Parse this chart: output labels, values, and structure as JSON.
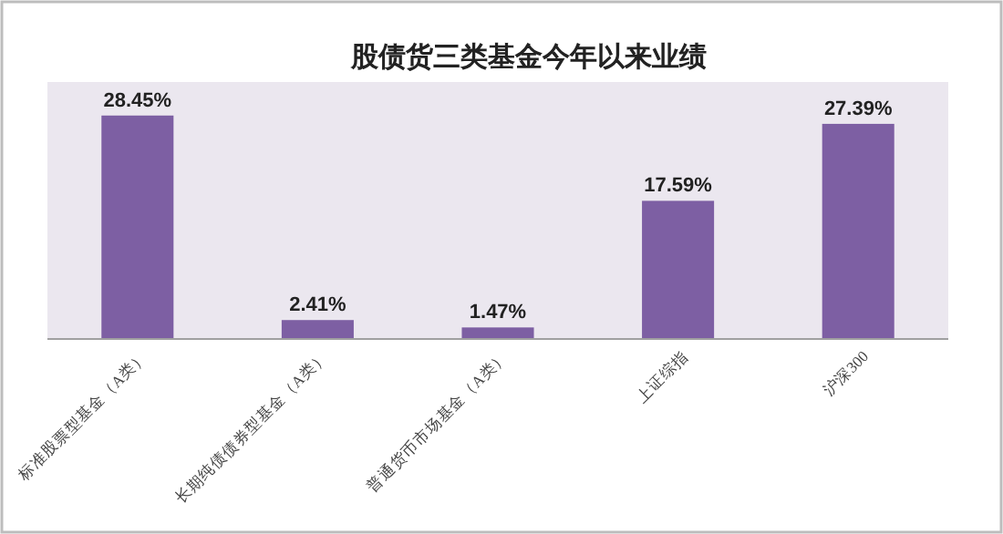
{
  "chart_data": {
    "type": "bar",
    "title": "股债货三类基金今年以来业绩",
    "categories": [
      "标准股票型基金（A类）",
      "长期纯债债券型基金（A类）",
      "普通货币市场基金（A类）",
      "上证综指",
      "沪深300"
    ],
    "values": [
      28.45,
      2.41,
      1.47,
      17.59,
      27.39
    ],
    "value_labels": [
      "28.45%",
      "2.41%",
      "1.47%",
      "17.59%",
      "27.39%"
    ],
    "color": "#7d5fa3",
    "grid": false
  }
}
